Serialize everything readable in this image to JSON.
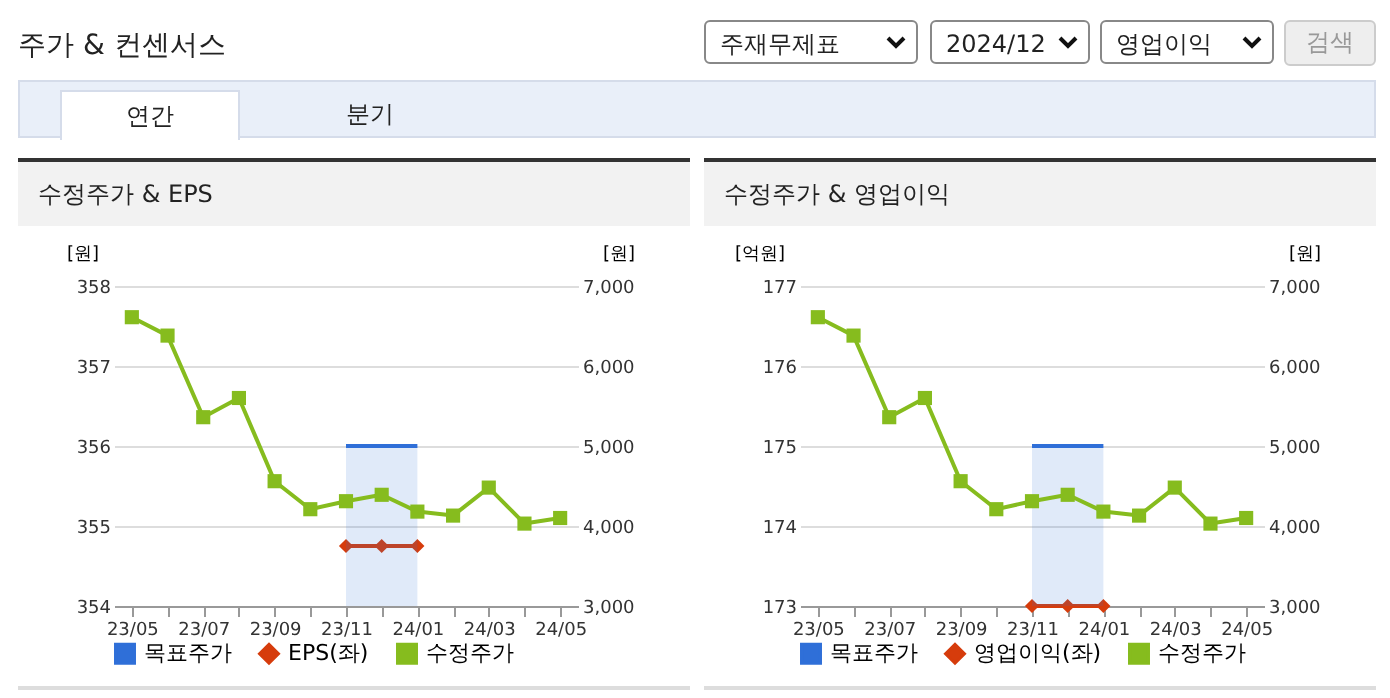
{
  "chart_data": [
    {
      "type": "other",
      "title": "주가 & 컨센서스",
      "annotations": [
        "주재무제표",
        "2024/12",
        "영업이익",
        "검색",
        "연간",
        "분기"
      ]
    },
    {
      "type": "line",
      "title": "수정주가 & EPS",
      "ylabel": "[원]",
      "y2label": "[원]",
      "categories": [
        "23/05",
        null,
        "23/07",
        null,
        "23/09",
        null,
        "23/11",
        null,
        "24/01",
        null,
        "24/03",
        null,
        "24/05"
      ],
      "ylim": [
        354,
        358
      ],
      "yticks": [
        354,
        355,
        356,
        357,
        358
      ],
      "y2lim": [
        3000,
        7000
      ],
      "y2ticks": [
        {
          "value": 3000,
          "label": "3,000"
        },
        {
          "value": 4000,
          "label": "4,000"
        },
        {
          "value": 5000,
          "label": "5,000"
        },
        {
          "value": 6000,
          "label": "6,000"
        },
        {
          "value": 7000,
          "label": "7,000"
        }
      ],
      "grid": "y",
      "legend": "bottom",
      "series": [
        {
          "name": "목표주가",
          "type": "area",
          "axis": "y2",
          "color": "#2f6fd8",
          "values": [
            null,
            null,
            null,
            null,
            null,
            null,
            5000,
            5000,
            5000,
            null,
            null,
            null,
            null
          ]
        },
        {
          "name": "EPS(좌)",
          "type": "line",
          "marker": "diamond",
          "color": "#d63c0c",
          "values": [
            null,
            null,
            null,
            null,
            null,
            null,
            354.75,
            354.75,
            354.75,
            null,
            null,
            null,
            null
          ]
        },
        {
          "name": "수정주가",
          "type": "line",
          "marker": "square",
          "axis": "y2",
          "color": "#86bc1e",
          "values": [
            6610,
            6380,
            5360,
            5600,
            4560,
            4210,
            4310,
            4390,
            4180,
            4130,
            4480,
            4030,
            4100
          ]
        }
      ]
    },
    {
      "type": "line",
      "title": "수정주가 & 영업이익",
      "ylabel": "[억원]",
      "y2label": "[원]",
      "categories": [
        "23/05",
        null,
        "23/07",
        null,
        "23/09",
        null,
        "23/11",
        null,
        "24/01",
        null,
        "24/03",
        null,
        "24/05"
      ],
      "ylim": [
        173,
        177
      ],
      "yticks": [
        173,
        174,
        175,
        176,
        177
      ],
      "y2lim": [
        3000,
        7000
      ],
      "y2ticks": [
        {
          "value": 3000,
          "label": "3,000"
        },
        {
          "value": 4000,
          "label": "4,000"
        },
        {
          "value": 5000,
          "label": "5,000"
        },
        {
          "value": 6000,
          "label": "6,000"
        },
        {
          "value": 7000,
          "label": "7,000"
        }
      ],
      "grid": "y",
      "legend": "bottom",
      "series": [
        {
          "name": "목표주가",
          "type": "area",
          "axis": "y2",
          "color": "#2f6fd8",
          "values": [
            null,
            null,
            null,
            null,
            null,
            null,
            5000,
            5000,
            5000,
            null,
            null,
            null,
            null
          ]
        },
        {
          "name": "영업이익(좌)",
          "type": "line",
          "marker": "diamond",
          "color": "#d63c0c",
          "values": [
            null,
            null,
            null,
            null,
            null,
            null,
            173,
            173,
            173,
            null,
            null,
            null,
            null
          ]
        },
        {
          "name": "수정주가",
          "type": "line",
          "marker": "square",
          "axis": "y2",
          "color": "#86bc1e",
          "values": [
            6610,
            6380,
            5360,
            5600,
            4560,
            4210,
            4310,
            4390,
            4180,
            4130,
            4480,
            4030,
            4100
          ]
        }
      ]
    }
  ]
}
